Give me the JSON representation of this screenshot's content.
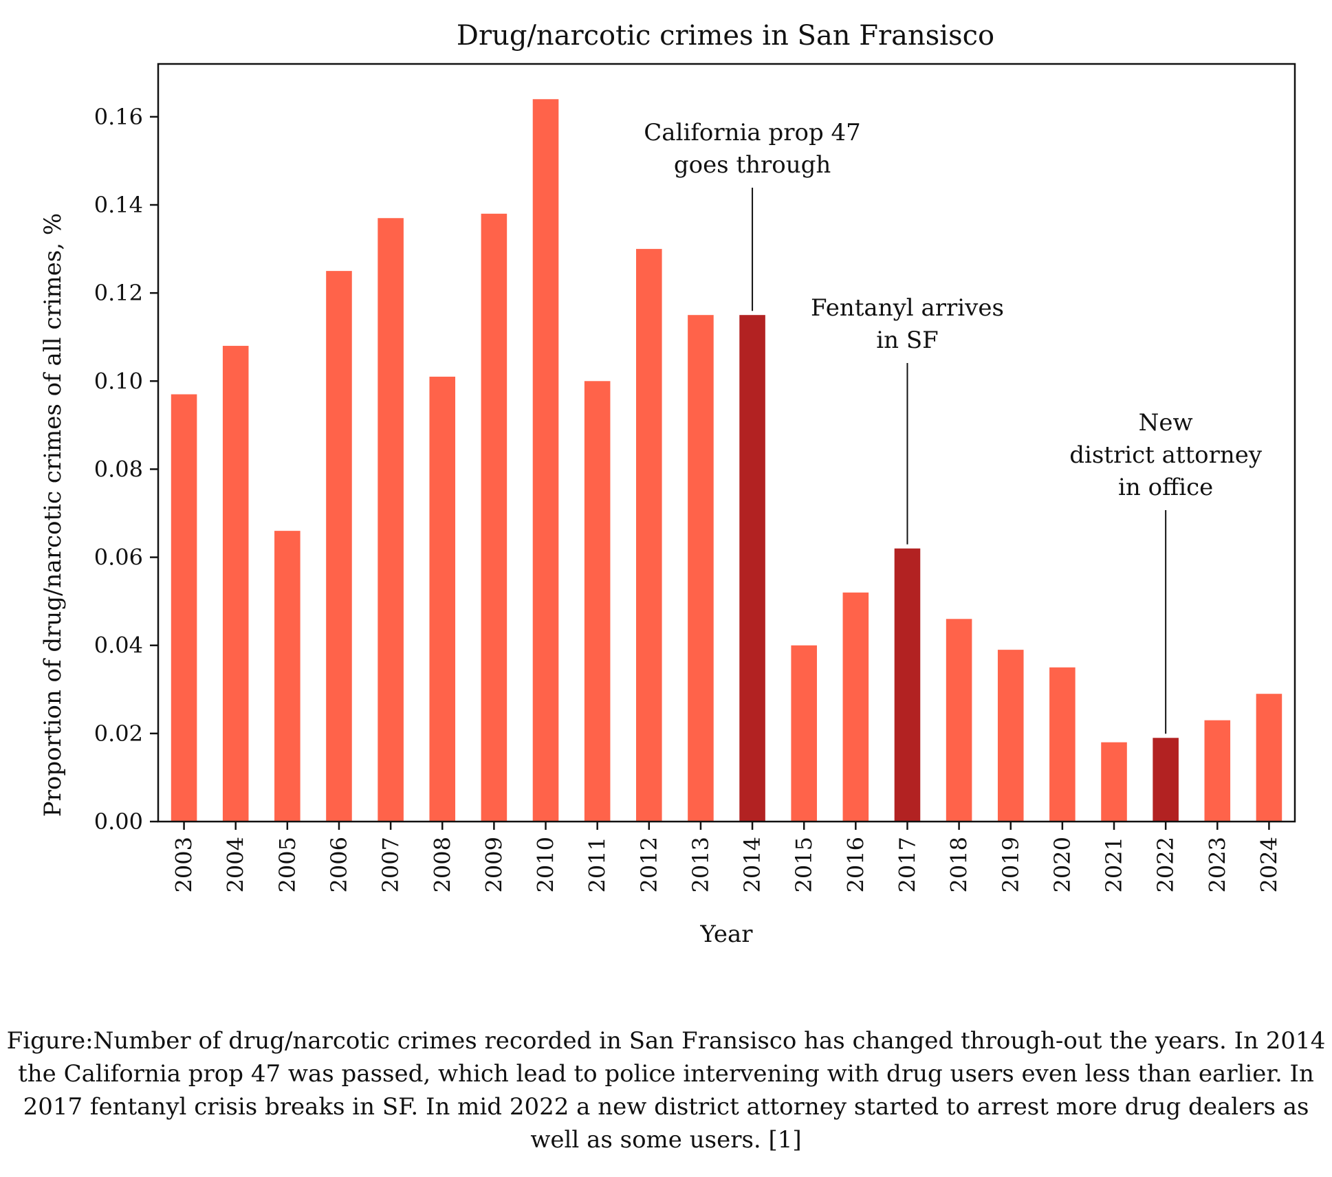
{
  "chart_data": {
    "type": "bar",
    "title": "Drug/narcotic crimes in San Fransisco",
    "xlabel": "Year",
    "ylabel": "Proportion of drug/narcotic crimes of all crimes, %",
    "categories": [
      "2003",
      "2004",
      "2005",
      "2006",
      "2007",
      "2008",
      "2009",
      "2010",
      "2011",
      "2012",
      "2013",
      "2014",
      "2015",
      "2016",
      "2017",
      "2018",
      "2019",
      "2020",
      "2021",
      "2022",
      "2023",
      "2024"
    ],
    "values": [
      0.097,
      0.108,
      0.066,
      0.125,
      0.137,
      0.101,
      0.138,
      0.164,
      0.1,
      0.13,
      0.115,
      0.115,
      0.04,
      0.052,
      0.062,
      0.046,
      0.039,
      0.035,
      0.018,
      0.019,
      0.023,
      0.029
    ],
    "highlighted_categories": [
      "2014",
      "2017",
      "2022"
    ],
    "ylim": [
      0,
      0.172
    ],
    "yticks": [
      "0.00",
      "0.02",
      "0.04",
      "0.06",
      "0.08",
      "0.10",
      "0.12",
      "0.14",
      "0.16"
    ],
    "grid": false,
    "colors": {
      "bar": "#ff634a",
      "highlight": "#b22222",
      "axis": "#111111",
      "text": "#111111"
    },
    "annotations": [
      {
        "category": "2014",
        "lines": [
          "California prop 47",
          "goes through"
        ]
      },
      {
        "category": "2017",
        "lines": [
          "Fentanyl arrives",
          "in SF"
        ]
      },
      {
        "category": "2022",
        "lines": [
          "New",
          "district attorney",
          "in office"
        ]
      }
    ]
  },
  "caption": "Figure:Number of drug/narcotic crimes recorded in San Fransisco has changed through-out the years. In 2014 the California prop 47 was passed, which lead to police intervening with drug users even less than earlier. In 2017 fentanyl crisis breaks in SF. In mid 2022 a new district attorney started to arrest more drug dealers as well as some users. [1]"
}
